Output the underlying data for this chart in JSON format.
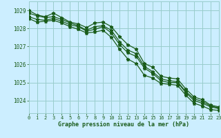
{
  "title": "Graphe pression niveau de la mer (hPa)",
  "bg_color": "#cceeff",
  "grid_color": "#99cccc",
  "line_color": "#1a5c1a",
  "xlim": [
    0,
    23
  ],
  "ylim": [
    1023.3,
    1029.5
  ],
  "yticks": [
    1024,
    1025,
    1026,
    1027,
    1028,
    1029
  ],
  "xticks": [
    0,
    1,
    2,
    3,
    4,
    5,
    6,
    7,
    8,
    9,
    10,
    11,
    12,
    13,
    14,
    15,
    16,
    17,
    18,
    19,
    20,
    21,
    22,
    23
  ],
  "series": [
    [
      1029.0,
      1028.75,
      1028.65,
      1028.85,
      1028.6,
      1028.35,
      1028.25,
      1028.05,
      1028.3,
      1028.35,
      1028.1,
      1027.55,
      1027.1,
      1026.85,
      1026.05,
      1025.85,
      1025.35,
      1025.25,
      1025.2,
      1024.65,
      1024.2,
      1024.05,
      1023.75,
      1023.65
    ],
    [
      1028.65,
      1028.5,
      1028.45,
      1028.55,
      1028.4,
      1028.2,
      1028.1,
      1027.85,
      1027.95,
      1028.1,
      1027.75,
      1027.1,
      1026.65,
      1026.45,
      1025.8,
      1025.5,
      1025.1,
      1025.0,
      1025.0,
      1024.45,
      1024.0,
      1023.85,
      1023.65,
      1023.55
    ],
    [
      1028.55,
      1028.35,
      1028.4,
      1028.45,
      1028.3,
      1028.1,
      1027.95,
      1027.75,
      1027.8,
      1027.9,
      1027.5,
      1026.85,
      1026.3,
      1026.05,
      1025.4,
      1025.25,
      1024.95,
      1024.9,
      1024.85,
      1024.3,
      1023.85,
      1023.7,
      1023.5,
      1023.45
    ],
    [
      1028.85,
      1028.7,
      1028.6,
      1028.65,
      1028.5,
      1028.3,
      1028.15,
      1027.9,
      1028.1,
      1028.15,
      1027.9,
      1027.25,
      1026.8,
      1026.6,
      1025.9,
      1025.6,
      1025.2,
      1025.1,
      1025.05,
      1024.5,
      1024.1,
      1023.95,
      1023.7,
      1023.6
    ]
  ]
}
